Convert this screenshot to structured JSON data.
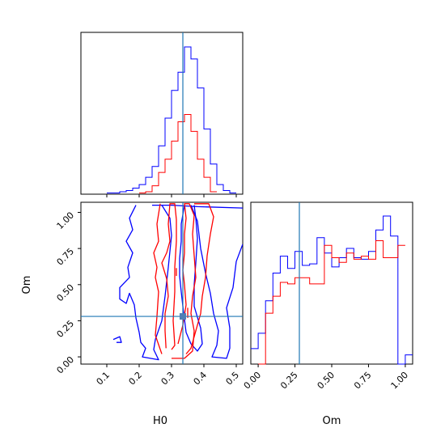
{
  "chart_data": [
    {
      "panel": "H0 marginal",
      "type": "histogram",
      "xlim": [
        0.02,
        0.52
      ],
      "truth": 0.335,
      "series": [
        {
          "color": "#0000ff",
          "bins": [
            0.1,
            0.12,
            0.14,
            0.16,
            0.18,
            0.2,
            0.22,
            0.24,
            0.26,
            0.28,
            0.3,
            0.32,
            0.34,
            0.36,
            0.38,
            0.4,
            0.42,
            0.44,
            0.46,
            0.48,
            0.5
          ],
          "counts": [
            1,
            1,
            2,
            3,
            5,
            8,
            14,
            23,
            40,
            63,
            86,
            101,
            122,
            112,
            88,
            54,
            25,
            8,
            3,
            1
          ]
        },
        {
          "color": "#ff0000",
          "bins": [
            0.2,
            0.22,
            0.24,
            0.26,
            0.28,
            0.3,
            0.32,
            0.34,
            0.36,
            0.38,
            0.4,
            0.42,
            0.44
          ],
          "counts": [
            1,
            2,
            7,
            18,
            29,
            44,
            60,
            66,
            52,
            29,
            14,
            2
          ]
        }
      ]
    },
    {
      "panel": "Om marginal",
      "type": "histogram",
      "xlim": [
        -0.05,
        1.05
      ],
      "truth": 0.28,
      "xlabel": "Om",
      "xticks": [
        "0.00",
        "0.25",
        "0.50",
        "0.75",
        "1.00"
      ],
      "series": [
        {
          "color": "#0000ff",
          "bins": [
            -0.05,
            0.0,
            0.05,
            0.1,
            0.15,
            0.2,
            0.25,
            0.3,
            0.35,
            0.4,
            0.45,
            0.5,
            0.55,
            0.6,
            0.65,
            0.7,
            0.75,
            0.8,
            0.85,
            0.9,
            0.95,
            1.0,
            1.05
          ],
          "counts": [
            10,
            20,
            41,
            59,
            70,
            62,
            73,
            64,
            65,
            82,
            72,
            63,
            69,
            75,
            69,
            68,
            73,
            87,
            96,
            83,
            0,
            6
          ]
        },
        {
          "color": "#ff0000",
          "bins": [
            0.0,
            0.05,
            0.1,
            0.15,
            0.2,
            0.25,
            0.3,
            0.35,
            0.4,
            0.45,
            0.5,
            0.55,
            0.6,
            0.65,
            0.7,
            0.75,
            0.8,
            0.85,
            0.9,
            0.95,
            1.0
          ],
          "counts": [
            0,
            33,
            44,
            53,
            52,
            56,
            56,
            52,
            52,
            77,
            69,
            66,
            72,
            68,
            70,
            68,
            80,
            69,
            69,
            77
          ]
        }
      ]
    },
    {
      "panel": "joint H0-Om",
      "type": "contour",
      "xlabel": "H0",
      "ylabel": "Om",
      "xlim": [
        0.02,
        0.52
      ],
      "ylim": [
        -0.05,
        1.07
      ],
      "xticks": [
        "0.1",
        "0.2",
        "0.3",
        "0.4",
        "0.5"
      ],
      "yticks": [
        "0.00",
        "0.25",
        "0.50",
        "0.75",
        "1.00"
      ],
      "truth": {
        "H0": 0.335,
        "Om": 0.28
      },
      "contours": [
        {
          "color": "#0000ff",
          "points": [
            [
              0.24,
              1.05
            ],
            [
              0.3,
              1.05
            ],
            [
              0.38,
              1.04
            ],
            [
              0.52,
              1.03
            ]
          ]
        },
        {
          "color": "#0000ff",
          "points": [
            [
              0.19,
              1.05
            ],
            [
              0.17,
              0.96
            ],
            [
              0.18,
              0.88
            ],
            [
              0.16,
              0.8
            ],
            [
              0.18,
              0.72
            ],
            [
              0.165,
              0.62
            ],
            [
              0.17,
              0.55
            ],
            [
              0.14,
              0.48
            ],
            [
              0.14,
              0.4
            ],
            [
              0.16,
              0.37
            ],
            [
              0.17,
              0.44
            ],
            [
              0.185,
              0.36
            ],
            [
              0.19,
              0.27
            ],
            [
              0.2,
              0.17
            ],
            [
              0.205,
              0.1
            ],
            [
              0.22,
              0.06
            ],
            [
              0.21,
              0.0
            ],
            [
              0.26,
              -0.02
            ],
            [
              0.245,
              0.05
            ],
            [
              0.25,
              0.12
            ],
            [
              0.27,
              0.25
            ],
            [
              0.28,
              0.42
            ],
            [
              0.29,
              0.62
            ],
            [
              0.3,
              0.84
            ],
            [
              0.295,
              0.96
            ],
            [
              0.27,
              1.05
            ]
          ]
        },
        {
          "color": "#0000ff",
          "points": [
            [
              0.34,
              1.05
            ],
            [
              0.33,
              0.92
            ],
            [
              0.33,
              0.8
            ],
            [
              0.325,
              0.68
            ],
            [
              0.325,
              0.56
            ],
            [
              0.33,
              0.45
            ],
            [
              0.335,
              0.35
            ],
            [
              0.34,
              0.26
            ],
            [
              0.345,
              0.17
            ],
            [
              0.36,
              0.09
            ],
            [
              0.38,
              0.04
            ],
            [
              0.395,
              0.09
            ],
            [
              0.39,
              0.2
            ],
            [
              0.37,
              0.35
            ],
            [
              0.37,
              0.5
            ],
            [
              0.375,
              0.65
            ],
            [
              0.38,
              0.82
            ],
            [
              0.375,
              0.96
            ],
            [
              0.37,
              1.05
            ]
          ]
        },
        {
          "color": "#0000ff",
          "points": [
            [
              0.36,
              1.05
            ],
            [
              0.38,
              0.94
            ],
            [
              0.39,
              0.75
            ],
            [
              0.405,
              0.58
            ],
            [
              0.42,
              0.44
            ],
            [
              0.43,
              0.3
            ],
            [
              0.445,
              0.18
            ],
            [
              0.44,
              0.08
            ],
            [
              0.425,
              0.0
            ],
            [
              0.47,
              -0.01
            ],
            [
              0.48,
              0.06
            ],
            [
              0.48,
              0.2
            ],
            [
              0.47,
              0.34
            ],
            [
              0.49,
              0.48
            ],
            [
              0.5,
              0.66
            ],
            [
              0.52,
              0.78
            ]
          ]
        },
        {
          "color": "#0000ff",
          "points": [
            [
              0.12,
              0.12
            ],
            [
              0.14,
              0.14
            ],
            [
              0.145,
              0.1
            ],
            [
              0.13,
              0.1
            ]
          ]
        },
        {
          "color": "#ff0000",
          "points": [
            [
              0.283,
              0.06
            ],
            [
              0.28,
              0.18
            ],
            [
              0.28,
              0.3
            ],
            [
              0.29,
              0.42
            ],
            [
              0.285,
              0.54
            ],
            [
              0.27,
              0.65
            ],
            [
              0.285,
              0.72
            ],
            [
              0.295,
              0.8
            ],
            [
              0.29,
              0.92
            ],
            [
              0.295,
              1.06
            ],
            [
              0.31,
              1.06
            ],
            [
              0.315,
              0.95
            ],
            [
              0.315,
              0.8
            ],
            [
              0.31,
              0.62
            ],
            [
              0.31,
              0.45
            ],
            [
              0.305,
              0.25
            ],
            [
              0.31,
              0.08
            ],
            [
              0.3,
              0.05
            ]
          ]
        },
        {
          "color": "#ff0000",
          "points": [
            [
              0.27,
              0.02
            ],
            [
              0.25,
              0.15
            ],
            [
              0.255,
              0.28
            ],
            [
              0.26,
              0.45
            ],
            [
              0.25,
              0.55
            ],
            [
              0.255,
              0.62
            ],
            [
              0.245,
              0.72
            ],
            [
              0.26,
              0.8
            ],
            [
              0.255,
              0.92
            ],
            [
              0.265,
              1.06
            ]
          ]
        },
        {
          "color": "#ff0000",
          "points": [
            [
              0.3,
              -0.01
            ],
            [
              0.34,
              -0.01
            ],
            [
              0.365,
              0.04
            ],
            [
              0.37,
              0.18
            ],
            [
              0.36,
              0.3
            ],
            [
              0.365,
              0.42
            ],
            [
              0.375,
              0.55
            ],
            [
              0.37,
              0.7
            ],
            [
              0.365,
              0.85
            ],
            [
              0.37,
              0.98
            ],
            [
              0.355,
              1.06
            ],
            [
              0.34,
              1.06
            ],
            [
              0.345,
              0.96
            ],
            [
              0.34,
              0.85
            ],
            [
              0.34,
              0.72
            ],
            [
              0.335,
              0.6
            ],
            [
              0.34,
              0.5
            ],
            [
              0.345,
              0.36
            ],
            [
              0.335,
              0.22
            ],
            [
              0.32,
              0.09
            ]
          ]
        },
        {
          "color": "#ff0000",
          "points": [
            [
              0.345,
              0.02
            ],
            [
              0.36,
              0.06
            ],
            [
              0.375,
              0.18
            ],
            [
              0.39,
              0.3
            ],
            [
              0.395,
              0.42
            ],
            [
              0.405,
              0.55
            ],
            [
              0.41,
              0.7
            ],
            [
              0.42,
              0.85
            ],
            [
              0.43,
              0.97
            ],
            [
              0.415,
              1.06
            ],
            [
              0.37,
              1.06
            ]
          ]
        },
        {
          "color": "#ff0000",
          "points": [
            [
              0.315,
              0.615
            ],
            [
              0.315,
              0.56
            ]
          ]
        },
        {
          "color": "#ff0000",
          "points": [
            [
              0.35,
              0.27
            ],
            [
              0.35,
              0.34
            ]
          ]
        }
      ]
    },
    {
      "panel": "H0 axis tick labels (marginal top)",
      "type": "axis",
      "xticks": [
        "",
        "",
        "",
        "",
        ""
      ]
    }
  ]
}
